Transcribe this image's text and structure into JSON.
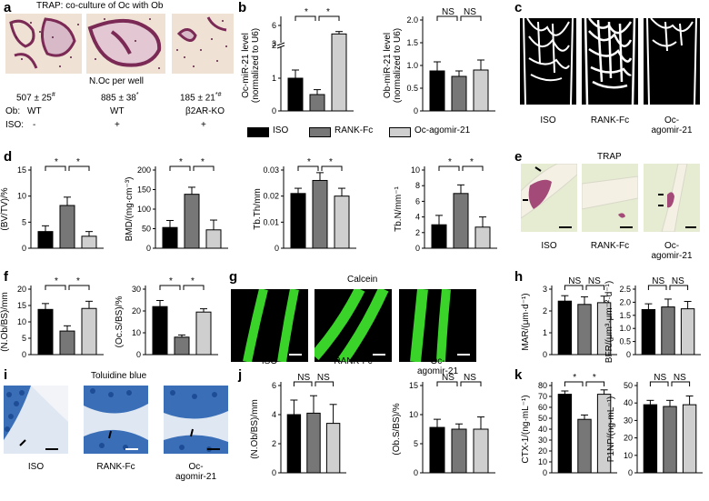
{
  "colors": {
    "black": "#000000",
    "dark_gray": "#777777",
    "light_gray": "#cfcfcf",
    "calcein_green": "#33dd22",
    "trap_bg": "#f3ece0",
    "trap_stain": "#8a2f5a",
    "tissue_bg": "#e8eedb",
    "toluidine": "#3a6fb8"
  },
  "panels": {
    "a": {
      "label": "a",
      "title": "TRAP: co-culture of Oc with Ob",
      "noc_header": "N.Oc per well",
      "values": [
        "507 ± 25",
        "885 ± 38",
        "185 ± 21"
      ],
      "sups": [
        "#",
        "*",
        "*#"
      ],
      "ob_label": "Ob:",
      "ob_values": [
        "WT",
        "WT",
        "β2AR-KO"
      ],
      "iso_label": "ISO:",
      "iso_values": [
        "-",
        "+",
        "+"
      ]
    },
    "b": {
      "label": "b"
    },
    "c": {
      "label": "c",
      "captions": [
        "ISO",
        "RANK-Fc",
        "Oc-\nagomir-21"
      ]
    },
    "d": {
      "label": "d"
    },
    "e": {
      "label": "e",
      "title": "TRAP",
      "captions": [
        "ISO",
        "RANK-Fc",
        "Oc-\nagomir-21"
      ]
    },
    "f": {
      "label": "f"
    },
    "g": {
      "label": "g",
      "title": "Calcein",
      "captions": [
        "ISO",
        "RANK-Fc",
        "Oc-\nagomir-21"
      ]
    },
    "h": {
      "label": "h"
    },
    "i": {
      "label": "i",
      "title": "Toluidine blue",
      "captions": [
        "ISO",
        "RANK-Fc",
        "Oc-\nagomir-21"
      ]
    },
    "j": {
      "label": "j"
    },
    "k": {
      "label": "k"
    }
  },
  "legend": [
    "ISO",
    "RANK-Fc",
    "Oc-agomir-21"
  ],
  "chart_data": [
    {
      "panel": "b",
      "type": "bar",
      "ylabel": "Oc-miR-21 level\n(normalized to U6)",
      "ylim": [
        0,
        6
      ],
      "yticks": [
        "0",
        "1",
        "2",
        "3",
        "6"
      ],
      "broken_axis": true,
      "categories": [
        "ISO",
        "RANK-Fc",
        "Oc-agomir-21"
      ],
      "values": [
        1.0,
        0.5,
        4.6
      ],
      "errors": [
        0.25,
        0.15,
        0.4
      ],
      "sig": [
        "*",
        "*"
      ]
    },
    {
      "panel": "b2",
      "type": "bar",
      "ylabel": "Ob-miR-21 level\n(normalized to U6)",
      "ylim": [
        0,
        2
      ],
      "yticks": [
        "0",
        "0.5",
        "1.0",
        "1.5",
        "2.0"
      ],
      "categories": [
        "ISO",
        "RANK-Fc",
        "Oc-agomir-21"
      ],
      "values": [
        0.88,
        0.76,
        0.9
      ],
      "errors": [
        0.2,
        0.12,
        0.22
      ],
      "sig": [
        "NS",
        "NS"
      ]
    },
    {
      "panel": "d1",
      "type": "bar",
      "ylabel": "(BV/TV)/%",
      "ylim": [
        0,
        15
      ],
      "yticks": [
        "0",
        "5",
        "10",
        "15"
      ],
      "categories": [
        "ISO",
        "RANK-Fc",
        "Oc-agomir-21"
      ],
      "values": [
        3.2,
        8.2,
        2.3
      ],
      "errors": [
        1.1,
        1.6,
        0.9
      ],
      "sig": [
        "*",
        "*"
      ]
    },
    {
      "panel": "d2",
      "type": "bar",
      "ylabel": "BMD/(mg·cm⁻³)",
      "ylim": [
        0,
        200
      ],
      "yticks": [
        "0",
        "50",
        "100",
        "150",
        "200"
      ],
      "categories": [
        "ISO",
        "RANK-Fc",
        "Oc-agomir-21"
      ],
      "values": [
        53,
        138,
        47
      ],
      "errors": [
        18,
        18,
        25
      ],
      "sig": [
        "*",
        "*"
      ]
    },
    {
      "panel": "d3",
      "type": "bar",
      "ylabel": "Tb.Th/mm",
      "ylim": [
        0,
        0.03
      ],
      "yticks": [
        "0",
        "0.01",
        "0.02",
        "0.03"
      ],
      "categories": [
        "ISO",
        "RANK-Fc",
        "Oc-agomir-21"
      ],
      "values": [
        0.021,
        0.026,
        0.02
      ],
      "errors": [
        0.002,
        0.003,
        0.003
      ],
      "sig": [
        "*",
        "*"
      ]
    },
    {
      "panel": "d4",
      "type": "bar",
      "ylabel": "Tb.N/mm⁻¹",
      "ylim": [
        0,
        10
      ],
      "yticks": [
        "0",
        "2",
        "4",
        "6",
        "8",
        "10"
      ],
      "categories": [
        "ISO",
        "RANK-Fc",
        "Oc-agomir-21"
      ],
      "values": [
        3.0,
        7.0,
        2.7
      ],
      "errors": [
        1.2,
        1.1,
        1.3
      ],
      "sig": [
        "*",
        "*"
      ]
    },
    {
      "panel": "f1",
      "type": "bar",
      "ylabel": "(N.Ob/BS)/mm",
      "ylim": [
        0,
        20
      ],
      "yticks": [
        "0",
        "5",
        "10",
        "15",
        "20"
      ],
      "categories": [
        "ISO",
        "RANK-Fc",
        "Oc-agomir-21"
      ],
      "values": [
        13.8,
        7.2,
        14.1
      ],
      "errors": [
        1.8,
        1.6,
        2.2
      ],
      "sig": [
        "*",
        "*"
      ]
    },
    {
      "panel": "f2",
      "type": "bar",
      "ylabel": "(Oc.S/BS)/%",
      "ylim": [
        0,
        30
      ],
      "yticks": [
        "0",
        "10",
        "20",
        "30"
      ],
      "categories": [
        "ISO",
        "RANK-Fc",
        "Oc-agomir-21"
      ],
      "values": [
        22,
        8,
        19.5
      ],
      "errors": [
        2.8,
        1.0,
        1.5
      ],
      "sig": [
        "*",
        "*"
      ]
    },
    {
      "panel": "h1",
      "type": "bar",
      "ylabel": "MAR/(μm·d⁻¹)",
      "ylim": [
        0,
        3
      ],
      "yticks": [
        "0",
        "1",
        "2",
        "3"
      ],
      "categories": [
        "ISO",
        "RANK-Fc",
        "Oc-agomir-21"
      ],
      "values": [
        2.45,
        2.3,
        2.38
      ],
      "errors": [
        0.25,
        0.35,
        0.3
      ],
      "sig": [
        "NS",
        "NS"
      ]
    },
    {
      "panel": "h2",
      "type": "bar",
      "ylabel": "BFR/(μm³·μm⁻²·d⁻¹)",
      "ylim": [
        0,
        2.5
      ],
      "yticks": [
        "0",
        "0.5",
        "1.0",
        "1.5",
        "2.0",
        "2.5"
      ],
      "categories": [
        "ISO",
        "RANK-Fc",
        "Oc-agomir-21"
      ],
      "values": [
        1.72,
        1.82,
        1.75
      ],
      "errors": [
        0.22,
        0.3,
        0.28
      ],
      "sig": [
        "NS",
        "NS"
      ]
    },
    {
      "panel": "j1",
      "type": "bar",
      "ylabel": "(N.Ob/BS)/mm",
      "ylim": [
        0,
        6
      ],
      "yticks": [
        "0",
        "2",
        "4",
        "6"
      ],
      "categories": [
        "ISO",
        "RANK-Fc",
        "Oc-agomir-21"
      ],
      "values": [
        4.0,
        4.1,
        3.4
      ],
      "errors": [
        1.0,
        1.2,
        1.3
      ],
      "sig": [
        "NS",
        "NS"
      ]
    },
    {
      "panel": "j2",
      "type": "bar",
      "ylabel": "(Ob.S/BS)/%",
      "ylim": [
        0,
        15
      ],
      "yticks": [
        "0",
        "5",
        "10",
        "15"
      ],
      "categories": [
        "ISO",
        "RANK-Fc",
        "Oc-agomir-21"
      ],
      "values": [
        7.8,
        7.5,
        7.5
      ],
      "errors": [
        1.4,
        0.9,
        2.1
      ],
      "sig": [
        "NS",
        "NS"
      ]
    },
    {
      "panel": "k1",
      "type": "bar",
      "ylabel": "CTX-1/(ng·mL⁻¹)",
      "ylim": [
        0,
        80
      ],
      "yticks": [
        "0",
        "10",
        "20",
        "30",
        "40",
        "50",
        "60",
        "70",
        "80"
      ],
      "categories": [
        "ISO",
        "RANK-Fc",
        "Oc-agomir-21"
      ],
      "values": [
        72,
        49,
        72
      ],
      "errors": [
        3,
        4,
        4
      ],
      "sig": [
        "*",
        "*"
      ]
    },
    {
      "panel": "k2",
      "type": "bar",
      "ylabel": "P1NP/(ng·mL⁻¹)",
      "ylim": [
        0,
        50
      ],
      "yticks": [
        "0",
        "10",
        "20",
        "30",
        "40",
        "50"
      ],
      "categories": [
        "ISO",
        "RANK-Fc",
        "Oc-agomir-21"
      ],
      "values": [
        39,
        38,
        39
      ],
      "errors": [
        2.5,
        3.5,
        5
      ],
      "sig": [
        "NS",
        "NS"
      ]
    }
  ]
}
